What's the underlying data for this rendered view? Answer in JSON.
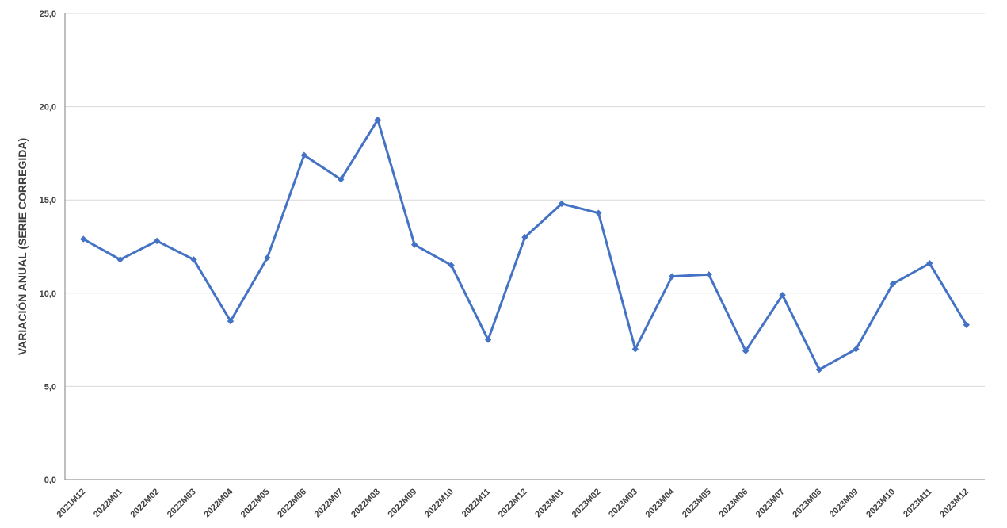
{
  "chart_data": {
    "type": "line",
    "title": "",
    "xlabel": "",
    "ylabel": "VARIACIÓN ANUAL (SERIE CORREGIDA)",
    "ylim": [
      0,
      25
    ],
    "y_ticks": [
      "0,0",
      "5,0",
      "10,0",
      "15,0",
      "20,0",
      "25,0"
    ],
    "grid": true,
    "legend": "none",
    "categories": [
      "2021M12",
      "2022M01",
      "2022M02",
      "2022M03",
      "2022M04",
      "2022M05",
      "2022M06",
      "2022M07",
      "2022M08",
      "2022M09",
      "2022M10",
      "2022M11",
      "2022M12",
      "2023M01",
      "2023M02",
      "2023M03",
      "2023M04",
      "2023M05",
      "2023M06",
      "2023M07",
      "2023M08",
      "2023M09",
      "2023M10",
      "2023M11",
      "2023M12"
    ],
    "series": [
      {
        "color": "#4472c4",
        "values": [
          12.9,
          11.8,
          12.8,
          11.8,
          8.5,
          11.9,
          17.4,
          16.1,
          19.3,
          12.6,
          11.5,
          7.5,
          13.0,
          14.8,
          14.3,
          7.0,
          10.9,
          11.0,
          6.9,
          9.9,
          5.9,
          7.0,
          10.5,
          11.6,
          8.3
        ]
      }
    ],
    "colors": {
      "line": "#4472c4",
      "grid": "#d9d9d9",
      "axis": "#7f7f7f",
      "text": "#404040"
    }
  }
}
